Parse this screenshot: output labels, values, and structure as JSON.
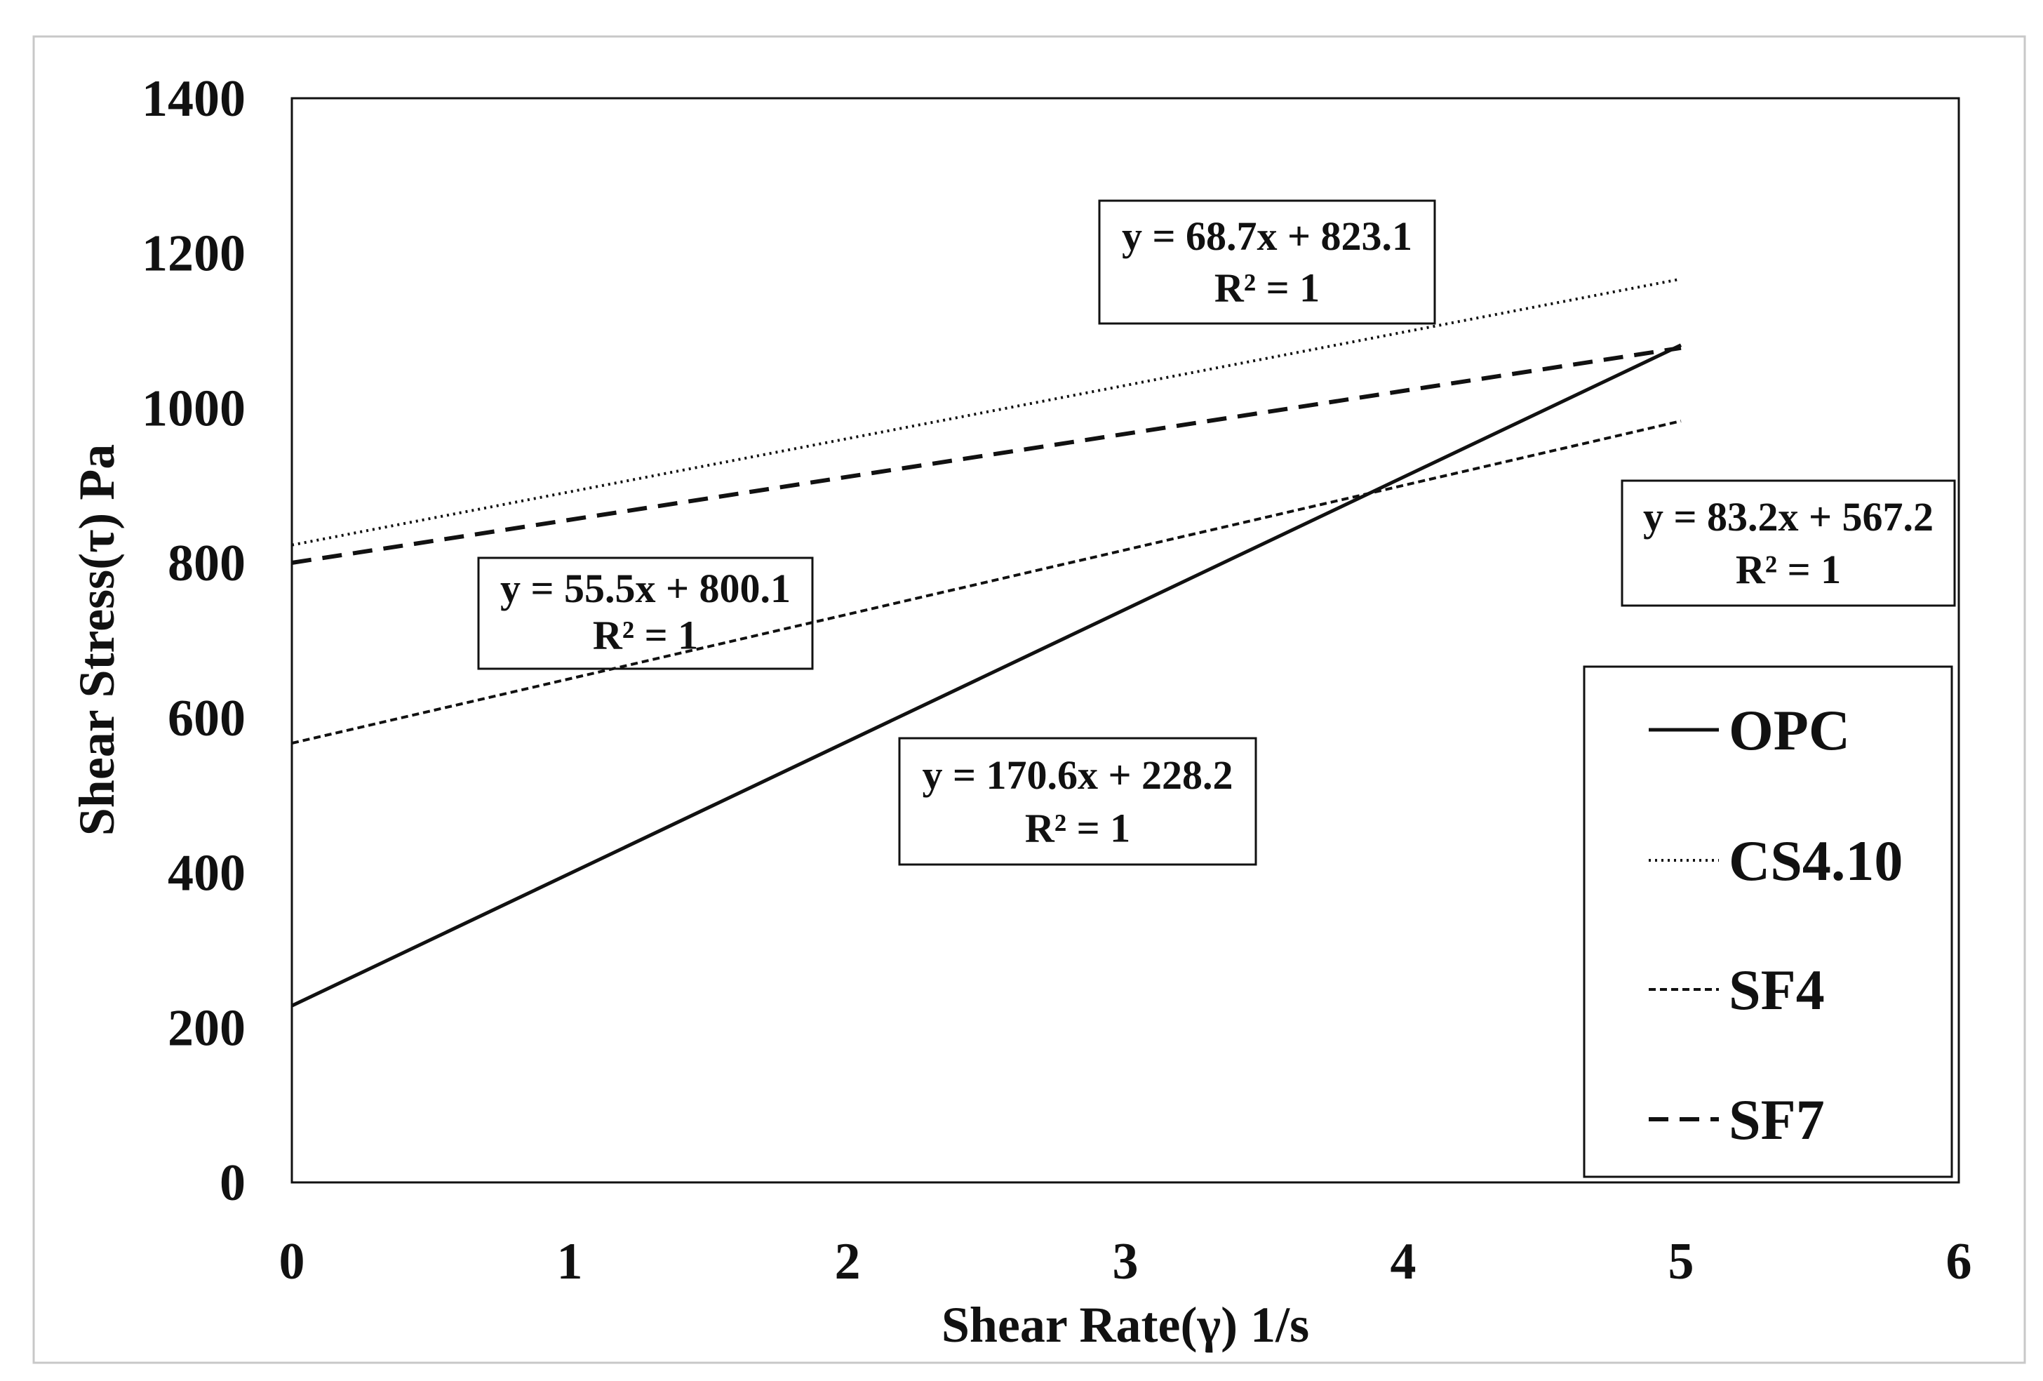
{
  "chart_data": {
    "type": "line",
    "xlabel": "Shear Rate(γ) 1/s",
    "ylabel": "Shear Stress(τ)  Pa",
    "xlim": [
      0,
      6
    ],
    "ylim": [
      0,
      1400
    ],
    "x_ticks": [
      0,
      1,
      2,
      3,
      4,
      5,
      6
    ],
    "y_ticks": [
      0,
      200,
      400,
      600,
      800,
      1000,
      1200,
      1400
    ],
    "grid": false,
    "legend_position": "bottom-right",
    "series": [
      {
        "name": "OPC",
        "line_style": "solid",
        "x": [
          0,
          5
        ],
        "y": [
          228.2,
          1081.2
        ]
      },
      {
        "name": "CS4.10",
        "line_style": "dotted",
        "x": [
          0,
          5
        ],
        "y": [
          823.1,
          1166.6
        ]
      },
      {
        "name": "SF4",
        "line_style": "short-dashed",
        "x": [
          0,
          5
        ],
        "y": [
          567.2,
          983.2
        ]
      },
      {
        "name": "SF7",
        "line_style": "long-dashed",
        "x": [
          0,
          5
        ],
        "y": [
          800.1,
          1077.6
        ]
      }
    ],
    "annotations": [
      {
        "line1": "y = 68.7x + 823.1",
        "line2": "R² = 1"
      },
      {
        "line1": "y = 55.5x + 800.1",
        "line2": "R² = 1"
      },
      {
        "line1": "y = 170.6x + 228.2",
        "line2": "R² = 1"
      },
      {
        "line1": "y = 83.2x + 567.2",
        "line2": "R² = 1"
      }
    ]
  },
  "colors": {
    "line": "#111111",
    "background": "#ffffff",
    "frame": "#c8c8c8"
  }
}
